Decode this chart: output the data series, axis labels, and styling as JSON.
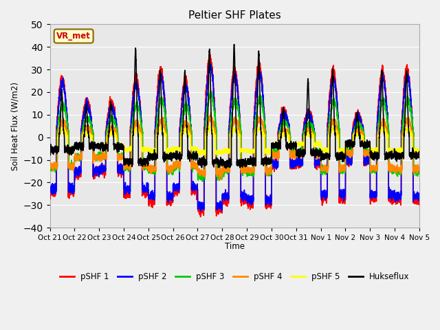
{
  "title": "Peltier SHF Plates",
  "ylabel": "Soil Heat Flux (W/m2)",
  "xlabel": "Time",
  "ylim": [
    -40,
    50
  ],
  "annotation_text": "VR_met",
  "series_colors": {
    "pSHF 1": "#ff0000",
    "pSHF 2": "#0000ff",
    "pSHF 3": "#00cc00",
    "pSHF 4": "#ff8800",
    "pSHF 5": "#ffff00",
    "Hukseflux": "#000000"
  },
  "tick_labels": [
    "Oct 21",
    "Oct 22",
    "Oct 23",
    "Oct 24",
    "Oct 25",
    "Oct 26",
    "Oct 27",
    "Oct 28",
    "Oct 29",
    "Oct 30",
    "Oct 31",
    "Nov 1",
    "Nov 2",
    "Nov 3",
    "Nov 4",
    "Nov 5"
  ],
  "background_color": "#f0f0f0",
  "plot_bg_color": "#e8e8e8",
  "grid_color": "#ffffff",
  "linewidth": 1.2,
  "day_peak_amps": [
    26,
    16,
    15,
    26,
    30,
    25,
    35,
    30,
    32,
    12,
    11,
    29,
    10,
    29,
    30
  ],
  "huk_peak_amps": [
    20,
    14,
    15,
    39,
    30,
    29,
    39,
    41,
    38,
    13,
    25,
    30,
    11,
    29,
    29
  ]
}
